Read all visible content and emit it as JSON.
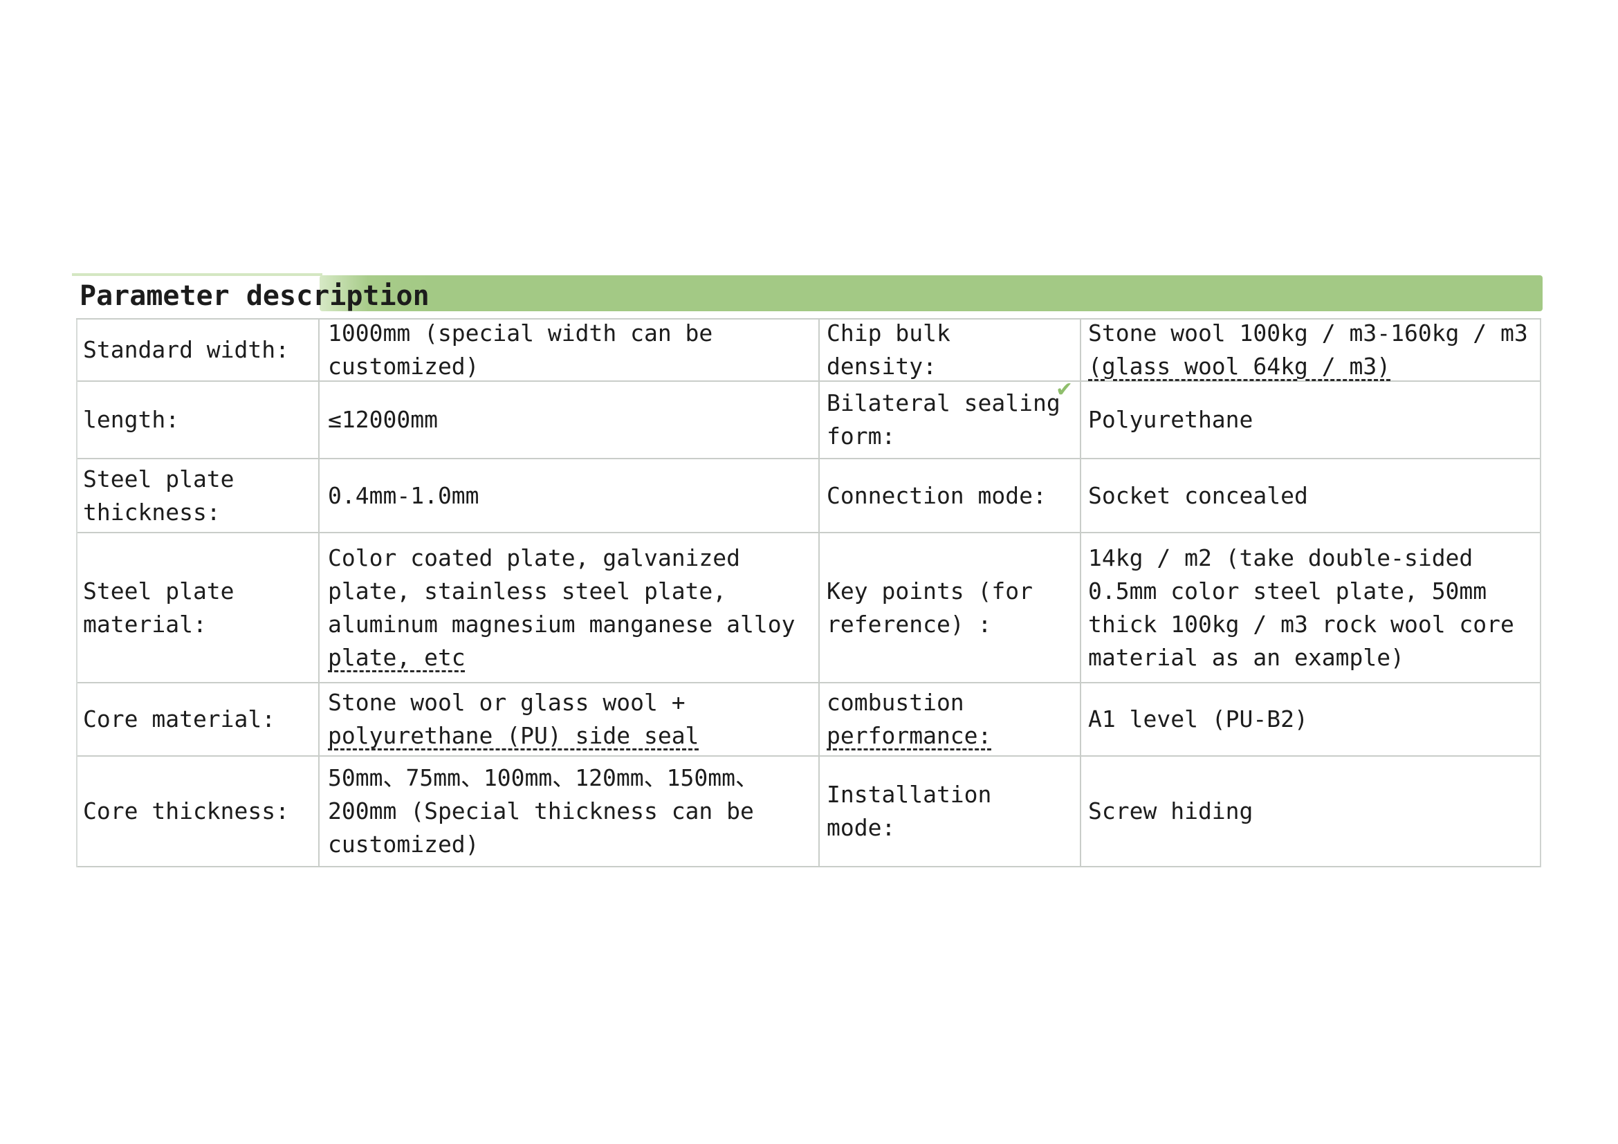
{
  "title": "Parameter description",
  "accent_green": "#a3c985",
  "grid_color": "#c9cdc9",
  "check_glyph": "✔",
  "table": {
    "rows": [
      {
        "cells": [
          {
            "lines": [
              {
                "t": "Standard width:",
                "u": false
              }
            ]
          },
          {
            "lines": [
              {
                "t": "1000mm (special width can be",
                "u": false
              },
              {
                "t": "customized)",
                "u": false
              }
            ]
          },
          {
            "lines": [
              {
                "t": "Chip bulk",
                "u": false
              },
              {
                "t": "density:",
                "u": false
              }
            ]
          },
          {
            "lines": [
              {
                "t": "Stone wool 100kg / m3-160kg / m3",
                "u": false
              },
              {
                "t": "(glass wool 64kg / m3)",
                "u": true
              }
            ]
          }
        ]
      },
      {
        "cells": [
          {
            "lines": [
              {
                "t": "length:",
                "u": false
              }
            ]
          },
          {
            "lines": [
              {
                "t": "≤12000mm",
                "u": false
              }
            ]
          },
          {
            "lines": [
              {
                "t": "Bilateral sealing",
                "u": false
              },
              {
                "t": "form:",
                "u": false
              }
            ]
          },
          {
            "lines": [
              {
                "t": "Polyurethane",
                "u": false
              }
            ]
          }
        ]
      },
      {
        "cells": [
          {
            "lines": [
              {
                "t": "Steel plate",
                "u": false
              },
              {
                "t": "thickness:",
                "u": false
              }
            ]
          },
          {
            "lines": [
              {
                "t": "0.4mm-1.0mm",
                "u": false
              }
            ]
          },
          {
            "lines": [
              {
                "t": "Connection mode:",
                "u": false
              }
            ]
          },
          {
            "lines": [
              {
                "t": "Socket concealed",
                "u": false
              }
            ]
          }
        ]
      },
      {
        "cells": [
          {
            "lines": [
              {
                "t": "Steel plate",
                "u": false
              },
              {
                "t": "material:",
                "u": false
              }
            ]
          },
          {
            "lines": [
              {
                "t": "Color coated plate, galvanized",
                "u": false
              },
              {
                "t": "plate, stainless steel plate,",
                "u": false
              },
              {
                "t": "aluminum magnesium manganese alloy",
                "u": false
              },
              {
                "t": "plate, etc",
                "u": true
              }
            ]
          },
          {
            "lines": [
              {
                "t": "Key points (for",
                "u": false
              },
              {
                "t": "reference) :",
                "u": false
              }
            ]
          },
          {
            "lines": [
              {
                "t": "14kg / m2 (take double-sided",
                "u": false
              },
              {
                "t": "0.5mm color steel plate, 50mm",
                "u": false
              },
              {
                "t": "thick 100kg / m3 rock wool core",
                "u": false
              },
              {
                "t": "material as an example)",
                "u": false
              }
            ]
          }
        ]
      },
      {
        "cells": [
          {
            "lines": [
              {
                "t": "Core material:",
                "u": false
              }
            ]
          },
          {
            "lines": [
              {
                "t": "Stone wool or glass wool +",
                "u": false
              },
              {
                "t": "polyurethane (PU) side seal",
                "u": true
              }
            ]
          },
          {
            "lines": [
              {
                "t": "combustion",
                "u": false
              },
              {
                "t": "performance:",
                "u": true
              }
            ]
          },
          {
            "lines": [
              {
                "t": "A1 level (PU-B2)",
                "u": false
              }
            ]
          }
        ]
      },
      {
        "cells": [
          {
            "lines": [
              {
                "t": "Core thickness:",
                "u": false
              }
            ]
          },
          {
            "lines": [
              {
                "t": "50mm、75mm、100mm、120mm、150mm、",
                "u": false
              },
              {
                "t": "200mm (Special thickness can be",
                "u": false
              },
              {
                "t": "customized)",
                "u": false
              }
            ]
          },
          {
            "lines": [
              {
                "t": "Installation",
                "u": false
              },
              {
                "t": "mode:",
                "u": false
              }
            ]
          },
          {
            "lines": [
              {
                "t": "Screw hiding",
                "u": false
              }
            ]
          }
        ]
      }
    ]
  }
}
